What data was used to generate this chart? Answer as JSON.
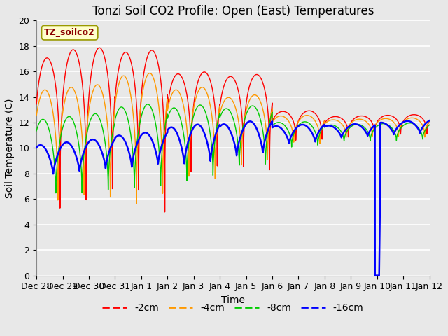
{
  "title": "Tonzi Soil CO2 Profile: Open (East) Temperatures",
  "ylabel": "Soil Temperature (C)",
  "xlabel": "Time",
  "annotation": "TZ_soilco2",
  "ylim": [
    0,
    20
  ],
  "xlim": [
    0,
    15
  ],
  "colors": {
    "-2cm": "#ff0000",
    "-4cm": "#ff9900",
    "-8cm": "#00cc00",
    "-16cm": "#0000ff"
  },
  "legend_labels": [
    "-2cm",
    "-4cm",
    "-8cm",
    "-16cm"
  ],
  "xtick_labels": [
    "Dec 28",
    "Dec 29",
    "Dec 30",
    "Dec 31",
    "Jan 1",
    "Jan 2",
    "Jan 3",
    "Jan 4",
    "Jan 5",
    "Jan 6",
    "Jan 7",
    "Jan 8",
    "Jan 9",
    "Jan 10",
    "Jan 11",
    "Jan 12"
  ],
  "plot_bg_color": "#e8e8e8",
  "fig_bg_color": "#e8e8e8",
  "grid_color": "#ffffff",
  "title_fontsize": 12,
  "axis_label_fontsize": 10,
  "tick_fontsize": 9
}
